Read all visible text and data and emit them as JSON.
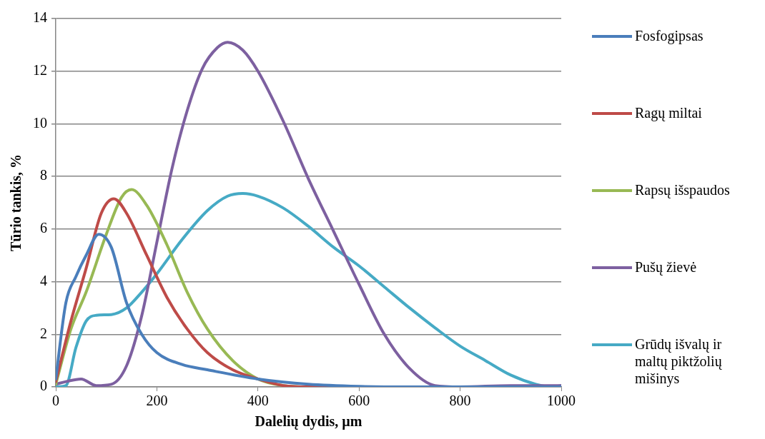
{
  "chart_data": {
    "type": "line",
    "xlabel": "Dalelių dydis, µm",
    "ylabel": "Tūrio tankis, %",
    "xlim": [
      0,
      1000
    ],
    "xticks": [
      0,
      200,
      400,
      600,
      800,
      1000
    ],
    "ylim": [
      0,
      14
    ],
    "yticks": [
      0,
      2,
      4,
      6,
      8,
      10,
      12,
      14
    ],
    "grid": "y",
    "legend": "right",
    "marker": "none",
    "line_style": "solid",
    "series": [
      {
        "name": "Fosfogipsas",
        "color": "#4a7ebb",
        "x": [
          0,
          20,
          40,
          60,
          85,
          110,
          140,
          170,
          200,
          250,
          300,
          400,
          500,
          600,
          700,
          800,
          1000
        ],
        "values": [
          0.3,
          3.2,
          4.2,
          5.0,
          5.8,
          5.3,
          3.2,
          2.0,
          1.3,
          0.85,
          0.65,
          0.3,
          0.1,
          0.02,
          0,
          0,
          0
        ]
      },
      {
        "name": "Ragų miltai",
        "color": "#be4b48",
        "x": [
          0,
          30,
          60,
          90,
          115,
          140,
          180,
          220,
          260,
          300,
          350,
          400,
          450,
          500,
          1000
        ],
        "values": [
          0.2,
          2.5,
          4.5,
          6.6,
          7.15,
          6.6,
          5.0,
          3.4,
          2.2,
          1.3,
          0.65,
          0.3,
          0.05,
          0,
          0
        ]
      },
      {
        "name": "Rapsų išspaudos",
        "color": "#98b954",
        "x": [
          0,
          30,
          60,
          100,
          130,
          150,
          180,
          220,
          260,
          300,
          350,
          400,
          450,
          500,
          1000
        ],
        "values": [
          0.1,
          2.2,
          3.6,
          5.8,
          7.2,
          7.5,
          6.9,
          5.4,
          3.6,
          2.2,
          1.0,
          0.3,
          0.05,
          0,
          0
        ]
      },
      {
        "name": "Pušų žievė",
        "color": "#7d60a0",
        "x": [
          0,
          20,
          50,
          80,
          110,
          140,
          170,
          200,
          230,
          260,
          290,
          320,
          340,
          370,
          400,
          450,
          500,
          550,
          600,
          650,
          700,
          750,
          800,
          900,
          1000
        ],
        "values": [
          0.1,
          0.2,
          0.3,
          0.05,
          0.1,
          0.8,
          2.7,
          5.5,
          8.3,
          10.5,
          12.1,
          12.9,
          13.1,
          12.8,
          12.0,
          10.1,
          7.9,
          5.9,
          3.9,
          2.0,
          0.7,
          0.05,
          0,
          0.05,
          0.05
        ]
      },
      {
        "name": "Grūdų išvalų ir maltų piktžolių mišinys",
        "color": "#46aac5",
        "x": [
          0,
          20,
          40,
          60,
          80,
          110,
          140,
          170,
          200,
          250,
          300,
          340,
          370,
          400,
          450,
          500,
          550,
          600,
          650,
          700,
          750,
          800,
          850,
          900,
          950,
          980,
          1000
        ],
        "values": [
          0,
          0.05,
          1.5,
          2.5,
          2.72,
          2.75,
          3.0,
          3.6,
          4.3,
          5.6,
          6.7,
          7.25,
          7.35,
          7.25,
          6.8,
          6.1,
          5.3,
          4.6,
          3.8,
          3.0,
          2.25,
          1.55,
          1.0,
          0.45,
          0.1,
          0,
          0.05
        ]
      }
    ]
  }
}
